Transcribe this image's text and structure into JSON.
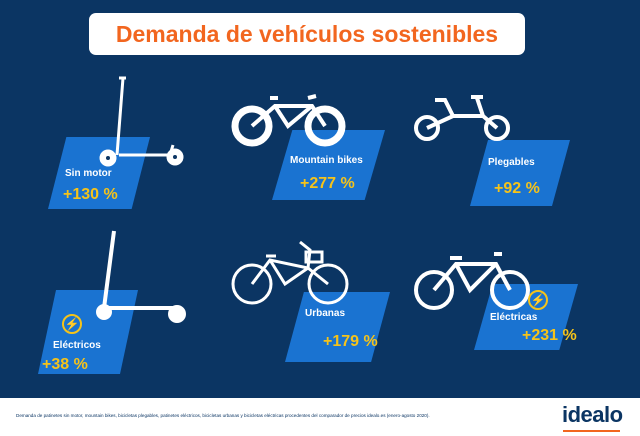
{
  "title": "Demanda de vehículos sostenibles",
  "items": [
    {
      "label": "Sin motor",
      "value": "+130 %",
      "icon": "kick-scooter-icon"
    },
    {
      "label": "Mountain bikes",
      "value": "+277 %",
      "icon": "mountain-bike-icon"
    },
    {
      "label": "Plegables",
      "value": "+92 %",
      "icon": "folding-bike-icon"
    },
    {
      "label": "Eléctricos",
      "value": "+38 %",
      "icon": "electric-scooter-icon"
    },
    {
      "label": "Urbanas",
      "value": "+179 %",
      "icon": "city-bike-icon"
    },
    {
      "label": "Eléctricas",
      "value": "+231 %",
      "icon": "electric-bike-icon"
    }
  ],
  "footer": {
    "note": "Demanda de patinetes sin motor, mountain bikes, bicicletas plegables, patinetes eléctricos, bicicletas urbanas y bicicletas eléctricas procedentes del comparador de precios idealo.es (enero-agosto 2020).",
    "logo": "idealo"
  },
  "colors": {
    "background": "#0b3563",
    "panel": "#1a73d1",
    "value": "#f5c31a",
    "title": "#f2661f"
  }
}
